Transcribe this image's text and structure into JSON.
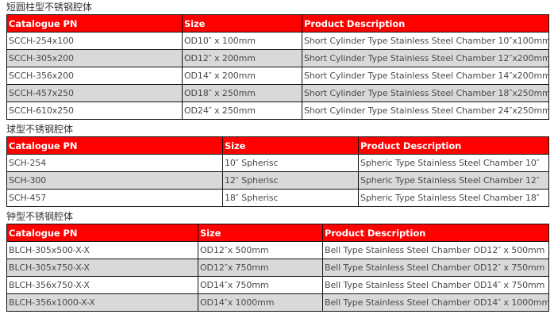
{
  "sections": [
    {
      "title": "短圆柱型不锈钢腔体",
      "headers": [
        "Catalogue PN",
        "Size",
        "Product Description"
      ],
      "rows": [
        [
          "SCCH-254x100",
          "OD10″ x 100mm",
          "Short Cylinder Type Stainless Steel Chamber 10″x100mm"
        ],
        [
          "SCCH-305x200",
          "OD12″ x 200mm",
          "Short Cylinder Type Stainless Steel Chamber 12″x200mm"
        ],
        [
          "SCCH-356x200",
          "OD14″ x 200mm",
          "Short Cylinder Type Stainless Steel Chamber 14″x200mm"
        ],
        [
          "SCCH-457x250",
          "OD18″ x 250mm",
          "Short Cylinder Type Stainless Steel Chamber 18″x250mm"
        ],
        [
          "SCCH-610x250",
          "OD24″ x 250mm",
          "Short Cylinder Type Stainless Steel Chamber 24″x250mm"
        ]
      ]
    },
    {
      "title": "球型不锈钢腔体",
      "headers": [
        "Catalogue PN",
        "Size",
        "Product Description"
      ],
      "rows": [
        [
          "SCH-254",
          "10″ Spherisc",
          "Spheric Type Stainless Steel Chamber 10″"
        ],
        [
          "SCH-300",
          "12″ Spherisc",
          "Spheric Type Stainless Steel Chamber 12″"
        ],
        [
          "SCH-457",
          "18″ Spherisc",
          "Spheric Type Stainless Steel Chamber 18″"
        ]
      ]
    },
    {
      "title": "钟型不锈钢腔体",
      "headers": [
        "Catalogue PN",
        "Size",
        "Product Description"
      ],
      "rows": [
        [
          "BLCH-305x500-X-X",
          "OD12″x 500mm",
          "Bell Type Stainless Steel Chamber OD12″ x 500mm"
        ],
        [
          "BLCH-305x750-X-X",
          "OD12″x 750mm",
          "Bell Type Stainless Steel Chamber OD12″ x 750mm"
        ],
        [
          "BLCH-356x750-X-X",
          "OD14″x 750mm",
          "Bell Type Stainless Steel Chamber OD14″ x 750mm"
        ],
        [
          "BLCH-356x1000-X-X",
          "OD14″x 1000mm",
          "Bell Type Stainless Steel Chamber OD14″ x 1000mm"
        ]
      ]
    }
  ],
  "colors": {
    "header_bg": "#ff0000",
    "alt_row": "#d9d9d9"
  }
}
